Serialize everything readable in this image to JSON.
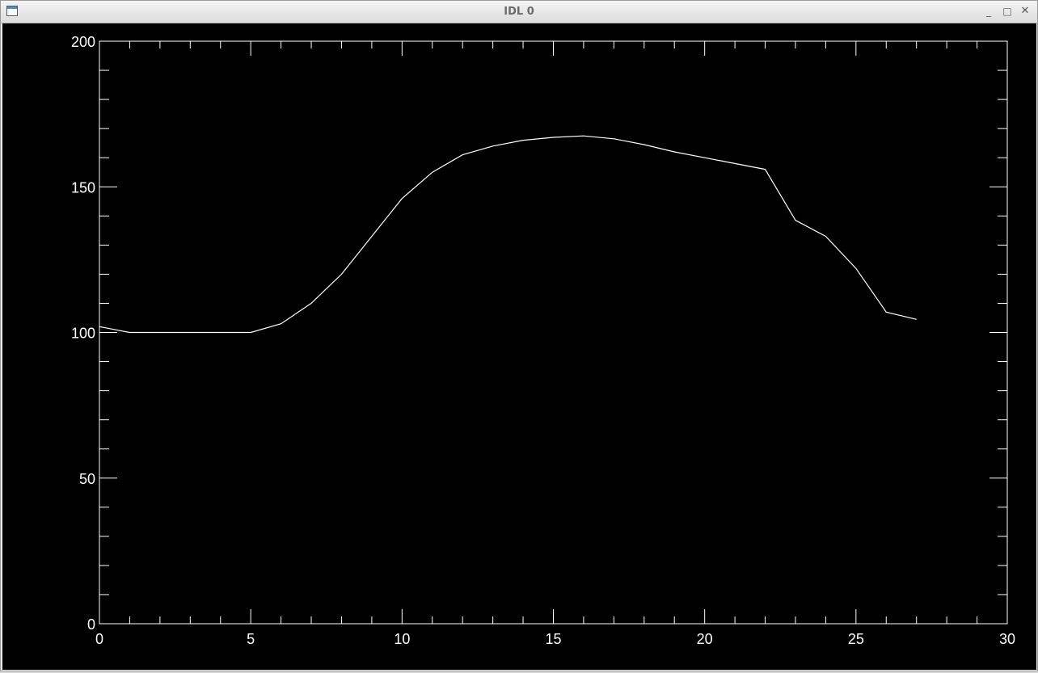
{
  "window": {
    "title": "IDL 0",
    "buttons": {
      "minimize": "_",
      "maximize": "□",
      "close": "✕"
    }
  },
  "colors": {
    "plot_background": "#000000",
    "plot_foreground": "#ffffff"
  },
  "chart_data": {
    "type": "line",
    "title": "",
    "xlabel": "",
    "ylabel": "",
    "xlim": [
      0,
      30
    ],
    "ylim": [
      0,
      200
    ],
    "x_ticks": [
      "0",
      "5",
      "10",
      "15",
      "20",
      "25",
      "30"
    ],
    "y_ticks": [
      "0",
      "50",
      "100",
      "150",
      "200"
    ],
    "x_minor_step": 1,
    "y_minor_step": 10,
    "grid": false,
    "series": [
      {
        "x": [
          0,
          1,
          2,
          3,
          4,
          5,
          6,
          7,
          8,
          9,
          10,
          11,
          12,
          13,
          14,
          15,
          16,
          17,
          18,
          19,
          20,
          21,
          22,
          23,
          24,
          25,
          26,
          27
        ],
        "values": [
          102,
          100,
          100,
          100,
          100,
          100,
          103,
          110,
          120,
          133,
          146,
          155,
          161,
          164,
          166,
          167,
          167.5,
          166.5,
          164.5,
          162,
          160,
          158,
          156,
          138.5,
          133,
          122,
          107,
          104.5
        ]
      }
    ]
  }
}
